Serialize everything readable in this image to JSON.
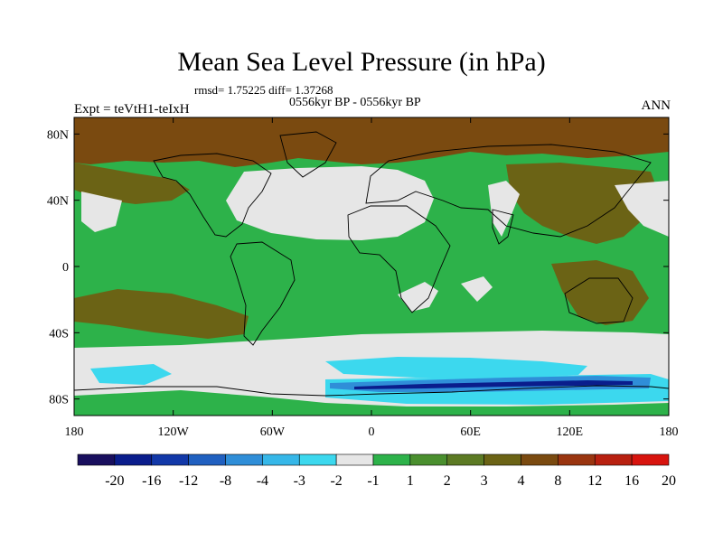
{
  "title": "Mean Sea Level Pressure (in hPa)",
  "stats": "rmsd= 1.75225 diff= 1.37268",
  "period": "0556kyr BP - 0556kyr BP",
  "experiment": "Expt = teVtH1-teIxH",
  "season": "ANN",
  "lat_ticks": [
    "80N",
    "40N",
    "0",
    "40S",
    "80S"
  ],
  "lon_ticks": [
    "180",
    "120W",
    "60W",
    "0",
    "60E",
    "120E",
    "180"
  ],
  "colorbar": {
    "labels": [
      "-20",
      "-16",
      "-12",
      "-8",
      "-4",
      "-3",
      "-2",
      "-1",
      "1",
      "2",
      "3",
      "4",
      "8",
      "12",
      "16",
      "20"
    ],
    "colors": [
      "#190f5e",
      "#0a1d8c",
      "#1238a8",
      "#2060c0",
      "#2f8ed8",
      "#36b7e8",
      "#3cd8ee",
      "#e6e6e6",
      "#2db24a",
      "#4a8f2e",
      "#5c7a24",
      "#6b6315",
      "#7a4a10",
      "#9a3510",
      "#b82010",
      "#d8140e"
    ]
  },
  "colors": {
    "ocean_base": "#2db24a",
    "land_high": "#6b6315",
    "arctic": "#7a4a10",
    "neutral": "#e6e6e6",
    "cyan": "#3cd8ee",
    "blue": "#2f8ed8",
    "dark_blue": "#0a1d8c"
  }
}
